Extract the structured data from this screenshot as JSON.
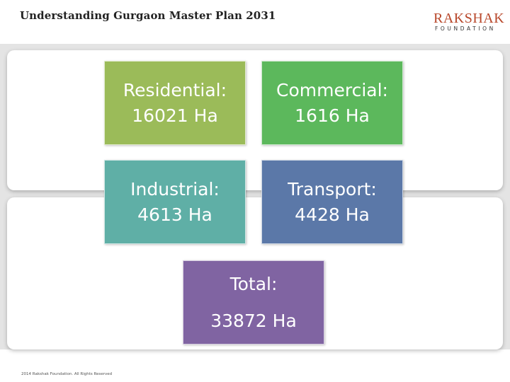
{
  "header": {
    "title": "Understanding Gurgaon Master Plan 2031",
    "logo_main": "RAKSHAK",
    "logo_sub": "FOUNDATION"
  },
  "boxes": [
    {
      "name": "residential",
      "label": "Residential:",
      "value": "16021 Ha",
      "color": "#9bbb59"
    },
    {
      "name": "commercial",
      "label": "Commercial:",
      "value": "1616 Ha",
      "color": "#5cb85c"
    },
    {
      "name": "industrial",
      "label": "Industrial:",
      "value": "4613 Ha",
      "color": "#5fafa6"
    },
    {
      "name": "transport",
      "label": "Transport:",
      "value": "4428 Ha",
      "color": "#5b78a8"
    }
  ],
  "total": {
    "label": "Total:",
    "value": "33872 Ha",
    "color": "#8064a2"
  },
  "footer": "2014 Rakshak Foundation. All Rights Reserved"
}
